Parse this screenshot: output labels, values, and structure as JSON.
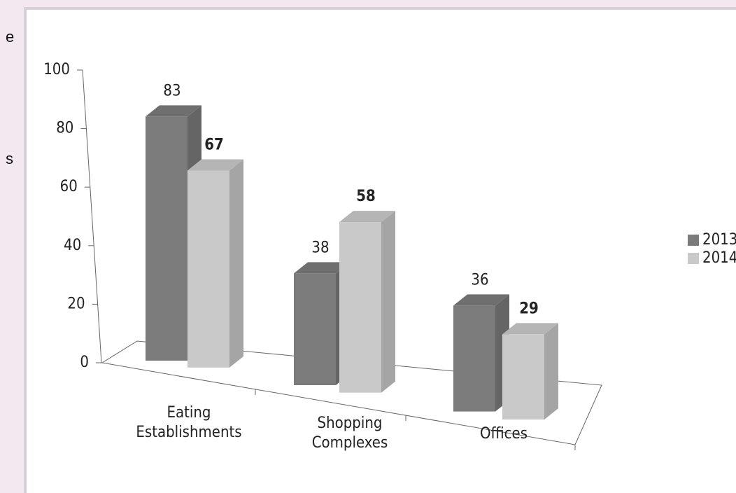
{
  "left_fragments": [
    "e",
    "s"
  ],
  "chart_data": {
    "type": "bar3d",
    "categories": [
      "Eating Establishments",
      "Shopping Complexes",
      "Offices"
    ],
    "series": [
      {
        "name": "2013",
        "color": "#7b7b7b",
        "values": [
          83,
          38,
          36
        ]
      },
      {
        "name": "2014",
        "color": "#c9c9c9",
        "values": [
          67,
          58,
          29
        ]
      }
    ],
    "ylim": [
      0,
      100
    ],
    "yticks": [
      0,
      20,
      40,
      60,
      80,
      100
    ],
    "legend": "right"
  }
}
